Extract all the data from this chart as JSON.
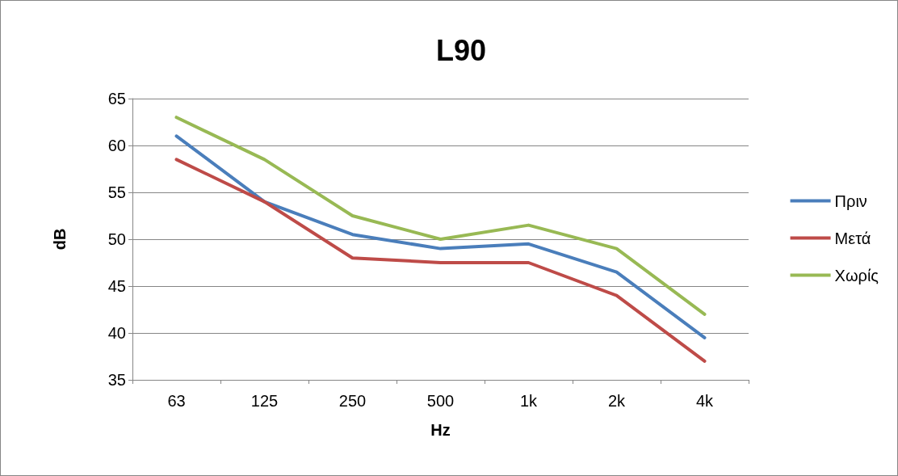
{
  "chart_data": {
    "type": "line",
    "title": "L90",
    "xlabel": "Hz",
    "ylabel": "dB",
    "categories": [
      "63",
      "125",
      "250",
      "500",
      "1k",
      "2k",
      "4k"
    ],
    "series": [
      {
        "name": "Πριν",
        "color": "#4a7ebb",
        "values": [
          61,
          54,
          50.5,
          49,
          49.5,
          46.5,
          39.5
        ]
      },
      {
        "name": "Μετά",
        "color": "#be4b48",
        "values": [
          58.5,
          54,
          48,
          47.5,
          47.5,
          44,
          37
        ]
      },
      {
        "name": "Χωρίς",
        "color": "#98b954",
        "values": [
          63,
          58.5,
          52.5,
          50,
          51.5,
          49,
          42
        ]
      }
    ],
    "ylim": [
      35,
      65
    ],
    "yticks": [
      35,
      40,
      45,
      50,
      55,
      60,
      65
    ],
    "grid": "y",
    "legend": "right",
    "marker": "none",
    "line_style": "solid"
  }
}
